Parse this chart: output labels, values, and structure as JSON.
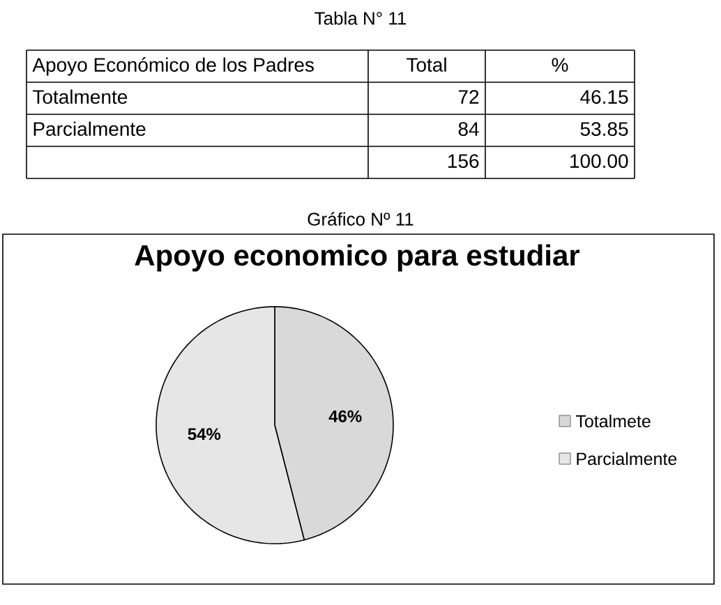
{
  "chart_data": [
    {
      "type": "other",
      "title": "Tabla N° 11",
      "categories": [
        "Apoyo Económico de los Padres",
        "Total",
        "%"
      ],
      "cell_labels": [
        [
          "Totalmente",
          "72",
          "46.15"
        ],
        [
          "Parcialmente",
          "84",
          "53.85"
        ],
        [
          null,
          "156",
          "100.00"
        ]
      ]
    },
    {
      "type": "pie",
      "title": "Apoyo economico para estudiar",
      "annotations": [
        "Gráfico Nº 11"
      ],
      "categories": [
        "Totalmete",
        "Parcialmente"
      ],
      "values": [
        46,
        54
      ],
      "colors": [
        "#d9d9d9",
        "#e6e6e6"
      ],
      "value_labels": [
        "46%",
        "54%"
      ],
      "legend": "right"
    }
  ]
}
